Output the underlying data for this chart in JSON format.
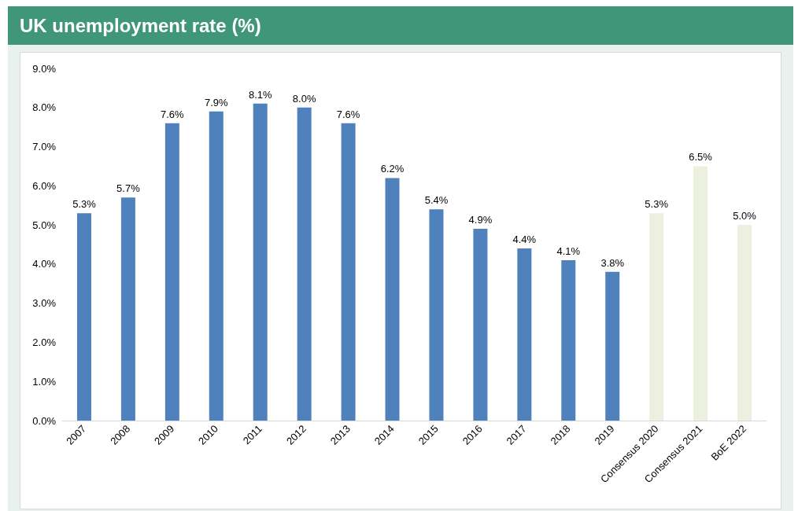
{
  "chart_data": {
    "type": "bar",
    "title": "UK unemployment rate (%)",
    "categories": [
      "2007",
      "2008",
      "2009",
      "2010",
      "2011",
      "2012",
      "2013",
      "2014",
      "2015",
      "2016",
      "2017",
      "2018",
      "2019",
      "Consensus 2020",
      "Consensus 2021",
      "BoE 2022"
    ],
    "values": [
      5.3,
      5.7,
      7.6,
      7.9,
      8.1,
      8.0,
      7.6,
      6.2,
      5.4,
      4.9,
      4.4,
      4.1,
      3.8,
      5.3,
      6.5,
      5.0
    ],
    "value_labels": [
      "5.3%",
      "5.7%",
      "7.6%",
      "7.9%",
      "8.1%",
      "8.0%",
      "7.6%",
      "6.2%",
      "5.4%",
      "4.9%",
      "4.4%",
      "4.1%",
      "3.8%",
      "5.3%",
      "6.5%",
      "5.0%"
    ],
    "colors": [
      "#4f81bd",
      "#4f81bd",
      "#4f81bd",
      "#4f81bd",
      "#4f81bd",
      "#4f81bd",
      "#4f81bd",
      "#4f81bd",
      "#4f81bd",
      "#4f81bd",
      "#4f81bd",
      "#4f81bd",
      "#4f81bd",
      "#ebf1de",
      "#ebf1de",
      "#ebf1de"
    ],
    "ylim": [
      0,
      9
    ],
    "yticks": [
      {
        "value": 0,
        "label": "0.0%"
      },
      {
        "value": 1,
        "label": "1.0%"
      },
      {
        "value": 2,
        "label": "2.0%"
      },
      {
        "value": 3,
        "label": "3.0%"
      },
      {
        "value": 4,
        "label": "4.0%"
      },
      {
        "value": 5,
        "label": "5.0%"
      },
      {
        "value": 6,
        "label": "6.0%"
      },
      {
        "value": 7,
        "label": "7.0%"
      },
      {
        "value": 8,
        "label": "8.0%"
      },
      {
        "value": 9,
        "label": "9.0%"
      }
    ],
    "grid": false
  }
}
